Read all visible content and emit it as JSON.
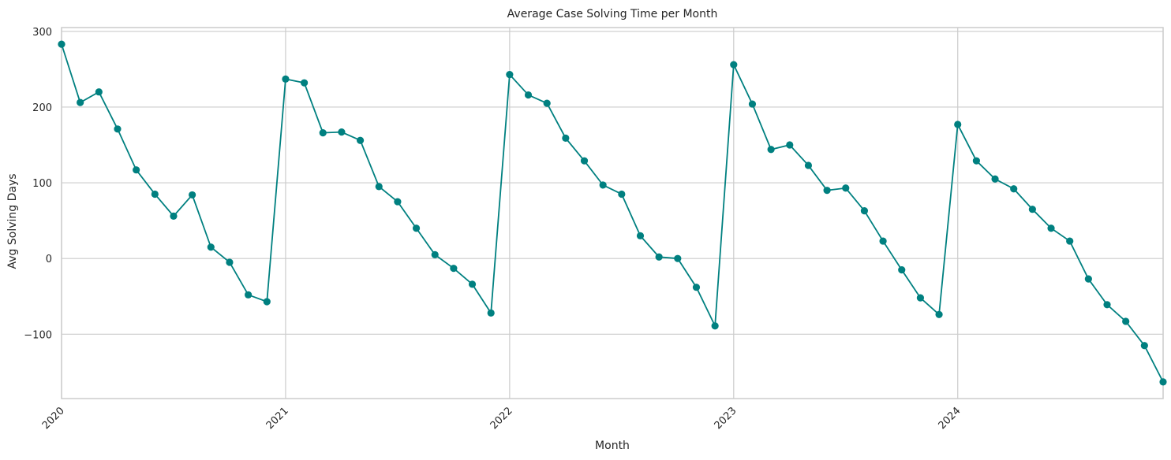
{
  "chart_data": {
    "type": "line",
    "title": "Average Case Solving Time per Month",
    "xlabel": "Month",
    "ylabel": "Avg Solving Days",
    "color": "#008080",
    "grid": true,
    "xlim": [
      "2020-01",
      "2024-12"
    ],
    "ylim": [
      -185,
      305
    ],
    "x_ticks": [
      "2020",
      "2021",
      "2022",
      "2023",
      "2024"
    ],
    "y_ticks": [
      -100,
      0,
      100,
      200,
      300
    ],
    "y_tick_labels": [
      "−100",
      "0",
      "100",
      "200",
      "300"
    ],
    "x": [
      "2020-01",
      "2020-02",
      "2020-03",
      "2020-04",
      "2020-05",
      "2020-06",
      "2020-07",
      "2020-08",
      "2020-09",
      "2020-10",
      "2020-11",
      "2020-12",
      "2021-01",
      "2021-02",
      "2021-03",
      "2021-04",
      "2021-05",
      "2021-06",
      "2021-07",
      "2021-08",
      "2021-09",
      "2021-10",
      "2021-11",
      "2021-12",
      "2022-01",
      "2022-02",
      "2022-03",
      "2022-04",
      "2022-05",
      "2022-06",
      "2022-07",
      "2022-08",
      "2022-09",
      "2022-10",
      "2022-11",
      "2022-12",
      "2023-01",
      "2023-02",
      "2023-03",
      "2023-04",
      "2023-05",
      "2023-06",
      "2023-07",
      "2023-08",
      "2023-09",
      "2023-10",
      "2023-11",
      "2023-12",
      "2024-01",
      "2024-02",
      "2024-03",
      "2024-04",
      "2024-05",
      "2024-06",
      "2024-07",
      "2024-08",
      "2024-09",
      "2024-10",
      "2024-11",
      "2024-12"
    ],
    "series": [
      {
        "values": [
          283,
          206,
          220,
          171,
          117,
          85,
          56,
          84,
          15,
          -5,
          -48,
          -57,
          237,
          232,
          166,
          167,
          156,
          95,
          75,
          40,
          5,
          -13,
          -34,
          -72,
          243,
          216,
          205,
          159,
          129,
          97,
          85,
          30,
          2,
          0,
          -38,
          -89,
          256,
          204,
          144,
          150,
          123,
          90,
          93,
          63,
          23,
          -15,
          -52,
          -74,
          177,
          129,
          105,
          92,
          65,
          40,
          23,
          -27,
          -61,
          -83,
          -115,
          -163
        ]
      }
    ]
  }
}
